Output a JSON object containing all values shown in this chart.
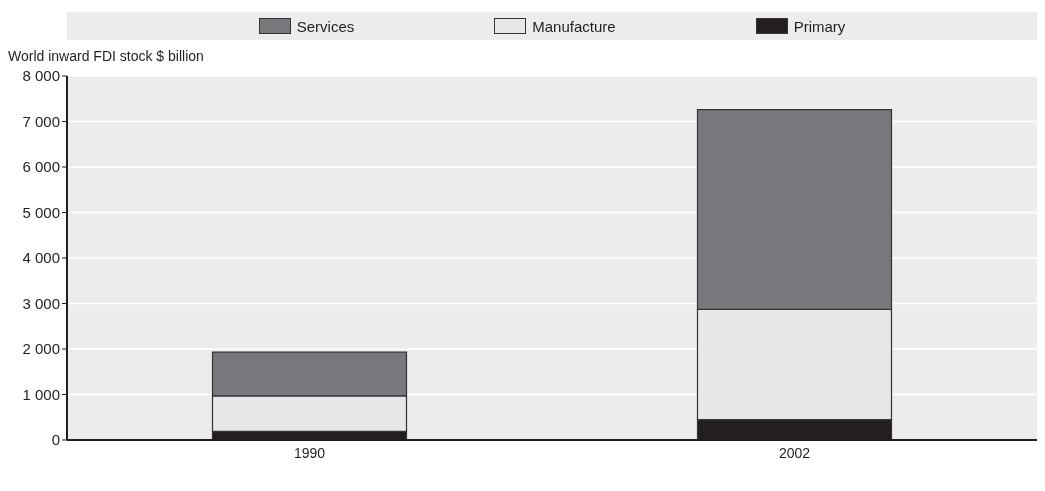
{
  "chart_data": {
    "type": "bar",
    "stacked": true,
    "ylabel": "World inward FDI stock $ billion",
    "categories": [
      "1990",
      "2002"
    ],
    "series": [
      {
        "name": "Primary",
        "color": "#231f20",
        "values": [
          190,
          450
        ]
      },
      {
        "name": "Manufacture",
        "color": "#e6e7e8",
        "values": [
          780,
          2420
        ]
      },
      {
        "name": "Services",
        "color": "#77787b",
        "values": [
          960,
          4390
        ]
      }
    ],
    "ylim": [
      0,
      8000
    ],
    "yticks": [
      0,
      1000,
      2000,
      3000,
      4000,
      5000,
      6000,
      7000,
      8000
    ],
    "grid": "y",
    "legend": "top"
  }
}
